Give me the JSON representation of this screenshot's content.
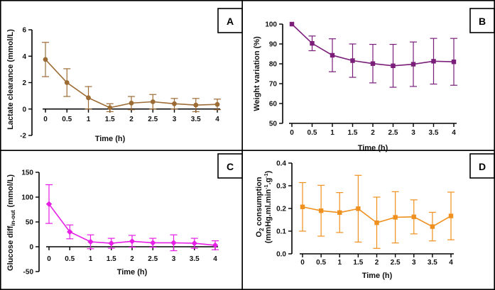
{
  "chart_data": [
    {
      "panel": "A",
      "type": "line",
      "color": "#9c6c34",
      "marker": "circle",
      "xlabel": "Time (h)",
      "ylabel": "Lactate clearance (mmol/L)",
      "x": [
        0,
        0.5,
        1,
        1.5,
        2,
        2.5,
        3,
        3.5,
        4
      ],
      "xtick_labels": [
        "0",
        "0.5",
        "1",
        "1.5",
        "2",
        "2.5",
        "3",
        "3.5",
        "4"
      ],
      "values": [
        3.75,
        2.0,
        0.85,
        0.1,
        0.45,
        0.55,
        0.4,
        0.3,
        0.35
      ],
      "error": [
        1.3,
        1.05,
        0.85,
        0.3,
        0.5,
        0.55,
        0.4,
        0.5,
        0.4
      ],
      "ylim": [
        -2,
        6
      ],
      "yticks": [
        -2,
        0,
        2,
        4,
        6
      ],
      "ytick_labels": [
        "-2",
        "0",
        "2",
        "4",
        "6"
      ]
    },
    {
      "panel": "B",
      "type": "line",
      "color": "#7a1e7a",
      "marker": "square",
      "xlabel": "Time (h)",
      "ylabel": "Weight variation (%)",
      "x": [
        0,
        0.5,
        1,
        1.5,
        2,
        2.5,
        3,
        3.5,
        4
      ],
      "xtick_labels": [
        "0",
        "0.5",
        "1",
        "1.5",
        "2",
        "2.5",
        "3",
        "3.5",
        "4"
      ],
      "values": [
        100,
        90.3,
        84.3,
        81.6,
        80.1,
        79.0,
        79.8,
        81.3,
        81.0
      ],
      "error": [
        0,
        3.7,
        8.3,
        8.4,
        9.7,
        10.8,
        11.2,
        11.5,
        11.8
      ],
      "ylim": [
        50,
        100
      ],
      "yticks": [
        50,
        60,
        70,
        80,
        90,
        100
      ],
      "ytick_labels": [
        "50",
        "60",
        "70",
        "80",
        "90",
        "100"
      ]
    },
    {
      "panel": "C",
      "type": "line",
      "color": "#e61ee6",
      "marker": "diamond",
      "xlabel": "Time (h)",
      "ylabel": "Glucose diff",
      "ylabel_sub": "in-out",
      "ylabel_unit": "(mmol/L)",
      "x": [
        0,
        0.5,
        1,
        1.5,
        2,
        2.5,
        3,
        3.5,
        4
      ],
      "xtick_labels": [
        "0",
        "0.5",
        "1",
        "1.5",
        "2",
        "2.5",
        "3",
        "3.5",
        "4"
      ],
      "values": [
        86,
        30,
        10,
        7,
        11,
        8,
        8,
        7,
        3
      ],
      "error": [
        39,
        14,
        14,
        10,
        12,
        9,
        16,
        10,
        9
      ],
      "ylim": [
        -50,
        150
      ],
      "yticks": [
        -50,
        0,
        50,
        100,
        150
      ],
      "ytick_labels": [
        "-50",
        "0",
        "50",
        "100",
        "150"
      ]
    },
    {
      "panel": "D",
      "type": "line",
      "color": "#f0901e",
      "marker": "square",
      "xlabel": "Time (h)",
      "ylabel_line1_pre": "O",
      "ylabel_line1_sub": "2",
      "ylabel_line1_post": " consumption",
      "ylabel_line2": "(mmHg.ml.min",
      "ylabel_line2_sup1": "-1",
      "ylabel_line2_mid": ".g",
      "ylabel_line2_sup2": "-1",
      "ylabel_line2_post": ")",
      "x": [
        0,
        0.5,
        1,
        1.5,
        2,
        2.5,
        3,
        3.5,
        4
      ],
      "xtick_labels": [
        "0",
        "0.5",
        "1",
        "1.5",
        "2",
        "2.5",
        "3",
        "3.5",
        "4"
      ],
      "values": [
        0.207,
        0.19,
        0.182,
        0.199,
        0.137,
        0.161,
        0.163,
        0.12,
        0.167
      ],
      "error": [
        0.107,
        0.112,
        0.088,
        0.147,
        0.113,
        0.113,
        0.075,
        0.063,
        0.105
      ],
      "ylim": [
        0.0,
        0.4
      ],
      "yticks": [
        0.0,
        0.1,
        0.2,
        0.3,
        0.4
      ],
      "ytick_labels": [
        "0.0",
        "0.1",
        "0.2",
        "0.3",
        "0.4"
      ]
    }
  ]
}
